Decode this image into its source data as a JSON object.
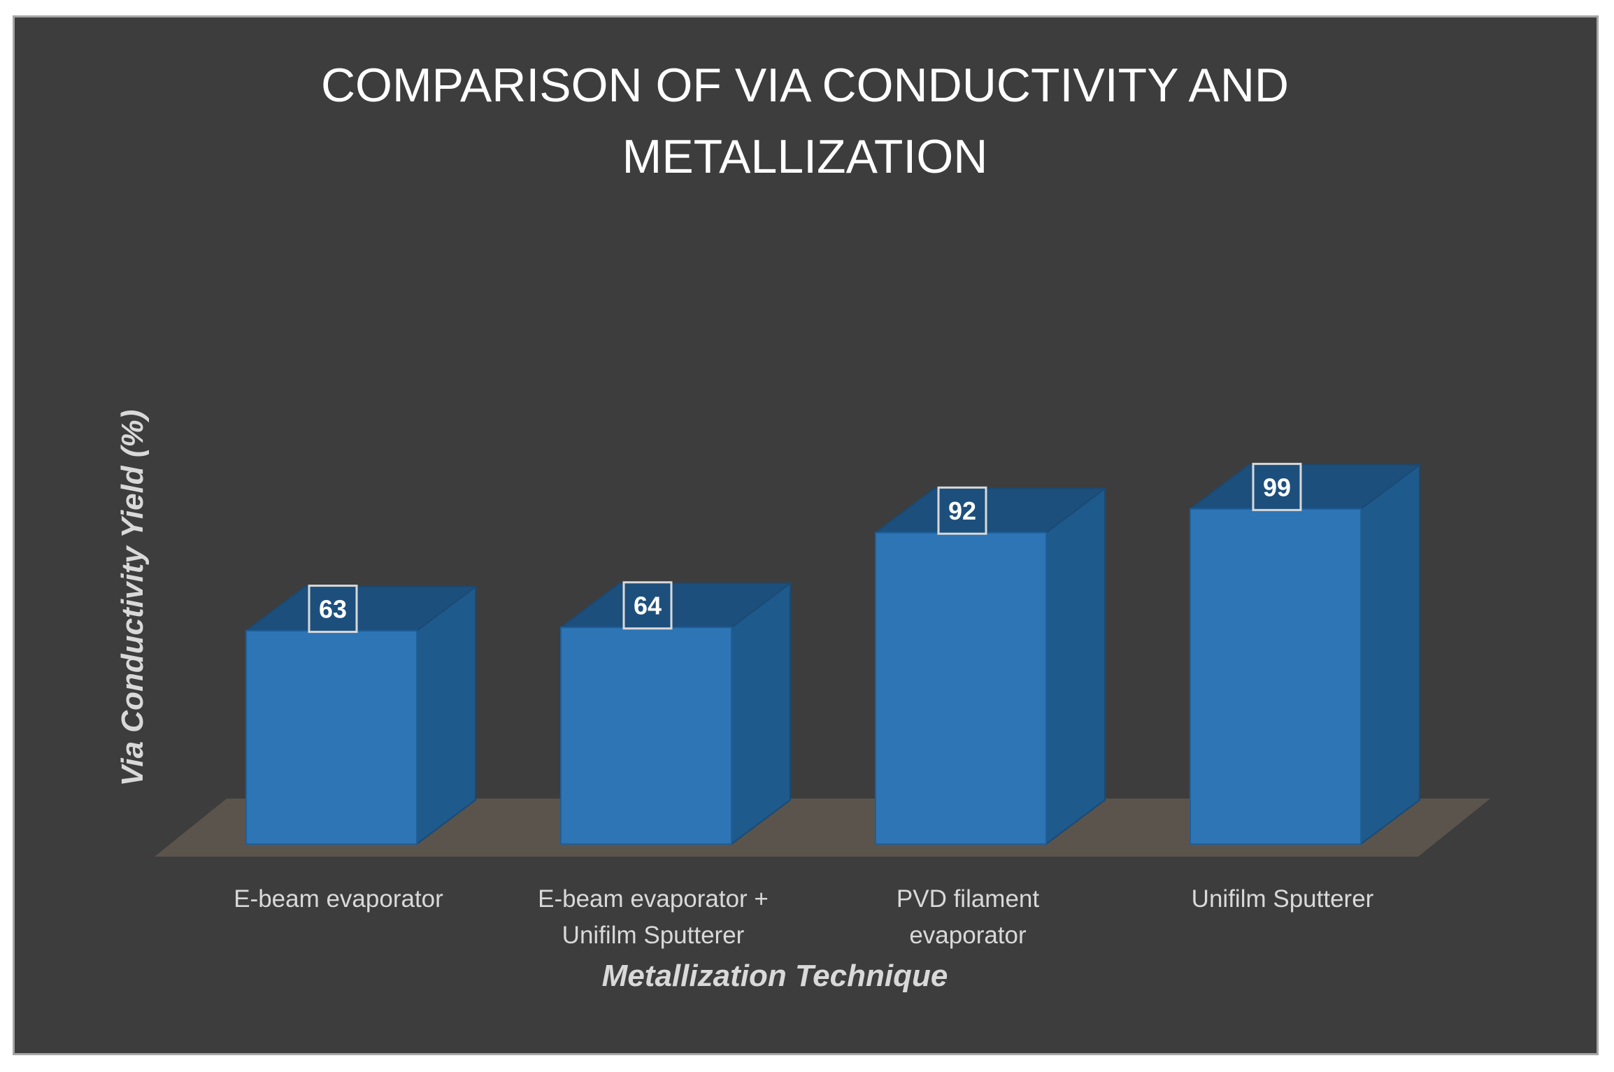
{
  "chart_data": {
    "type": "bar",
    "title_lines": [
      "COMPARISON OF VIA CONDUCTIVITY AND",
      "METALLIZATION"
    ],
    "xlabel": "Metallization Technique",
    "ylabel": "Via Conductivity Yield (%)",
    "categories": [
      [
        "E-beam  evaporator"
      ],
      [
        "E-beam  evaporator  +",
        "Unifilm Sputterer"
      ],
      [
        "PVD filament",
        "evaporator"
      ],
      [
        "Unifilm Sputterer"
      ]
    ],
    "values": [
      63,
      64,
      92,
      99
    ],
    "ylim": [
      0,
      100
    ],
    "grid": false,
    "legend": "none",
    "style": "3d-column",
    "colors": {
      "background": "#3d3d3d",
      "bar_front": "#2e75b6",
      "bar_side": "#1f5a8c",
      "bar_top": "#1d4f7c",
      "floor": "#5a544c",
      "text": "#d9d9d9",
      "title": "#ffffff"
    }
  }
}
